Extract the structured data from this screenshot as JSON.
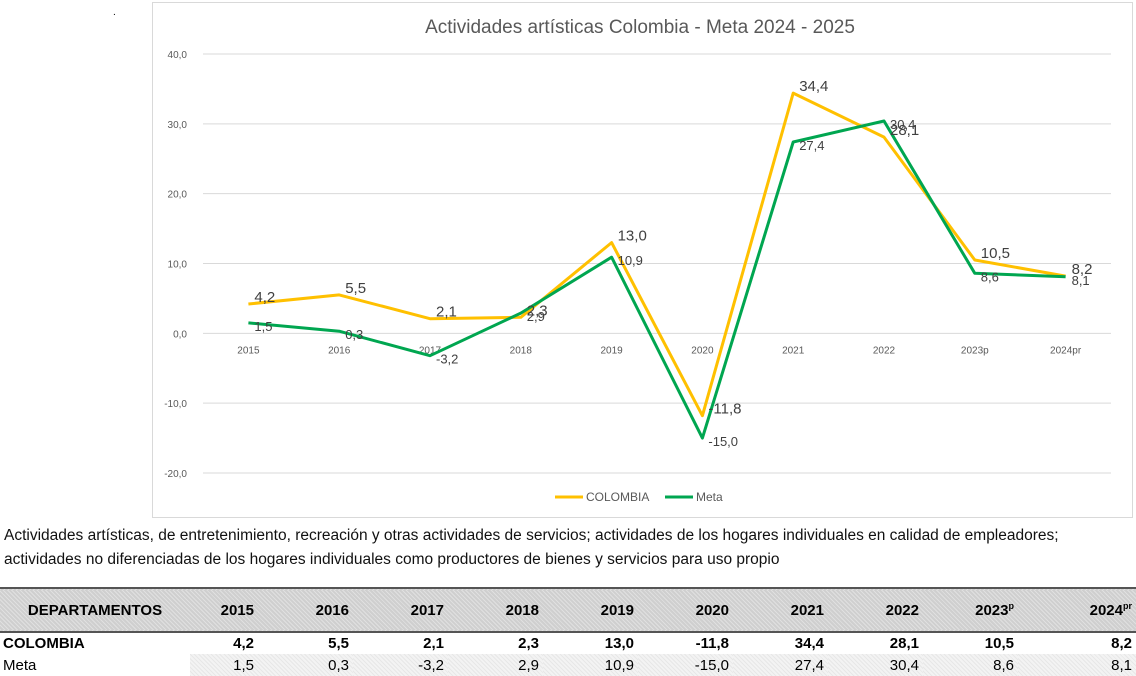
{
  "page": {
    "dot": "."
  },
  "chart_data": {
    "type": "line",
    "title": "Actividades artísticas Colombia - Meta 2024 - 2025",
    "categories": [
      "2015",
      "2016",
      "2017",
      "2018",
      "2019",
      "2020",
      "2021",
      "2022",
      "2023p",
      "2024pr"
    ],
    "series": [
      {
        "name": "COLOMBIA",
        "color": "#ffc000",
        "values": [
          4.2,
          5.5,
          2.1,
          2.3,
          13.0,
          -11.8,
          34.4,
          28.1,
          10.5,
          8.2
        ],
        "labels": [
          "4,2",
          "5,5",
          "2,1",
          "2,3",
          "13,0",
          "-11,8",
          "34,4",
          "28,1",
          "10,5",
          "8,2"
        ]
      },
      {
        "name": "Meta",
        "color": "#00a650",
        "values": [
          1.5,
          0.3,
          -3.2,
          2.9,
          10.9,
          -15.0,
          27.4,
          30.4,
          8.6,
          8.1
        ],
        "labels": [
          "1,5",
          "0,3",
          "-3,2",
          "2,9",
          "10,9",
          "-15,0",
          "27,4",
          "30,4",
          "8,6",
          "8,1"
        ]
      }
    ],
    "y_ticks": [
      40,
      30,
      20,
      10,
      0,
      -10,
      -20
    ],
    "y_tick_labels": [
      "40,0",
      "30,0",
      "20,0",
      "10,0",
      "0,0",
      "-10,0",
      "-20,0"
    ],
    "ylim": [
      -20,
      40
    ],
    "grid": true,
    "legend": "bottom",
    "xlabel": "",
    "ylabel": ""
  },
  "description": "Actividades artísticas, de entretenimiento, recreación y otras actividades de servicios; actividades de los hogares individuales en calidad de empleadores; actividades no diferenciadas de los hogares individuales como productores de bienes y servicios para uso propio",
  "table": {
    "header_first": "DEPARTAMENTOS",
    "year_headers": [
      {
        "base": "2015",
        "sup": ""
      },
      {
        "base": "2016",
        "sup": ""
      },
      {
        "base": "2017",
        "sup": ""
      },
      {
        "base": "2018",
        "sup": ""
      },
      {
        "base": "2019",
        "sup": ""
      },
      {
        "base": "2020",
        "sup": ""
      },
      {
        "base": "2021",
        "sup": ""
      },
      {
        "base": "2022",
        "sup": ""
      },
      {
        "base": "2023",
        "sup": "p"
      },
      {
        "base": "2024",
        "sup": "pr"
      }
    ],
    "rows": [
      {
        "label": "COLOMBIA",
        "values": [
          "4,2",
          "5,5",
          "2,1",
          "2,3",
          "13,0",
          "-11,8",
          "34,4",
          "28,1",
          "10,5",
          "8,2"
        ]
      },
      {
        "label": "Meta",
        "values": [
          "1,5",
          "0,3",
          "-3,2",
          "2,9",
          "10,9",
          "-15,0",
          "27,4",
          "30,4",
          "8,6",
          "8,1"
        ]
      }
    ]
  }
}
